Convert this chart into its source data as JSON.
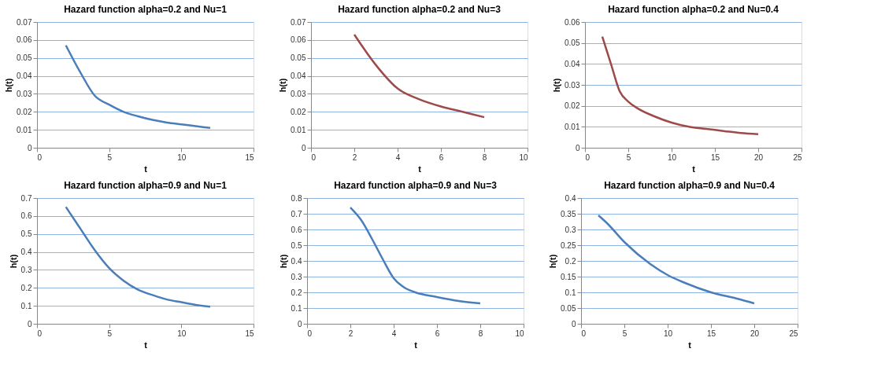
{
  "chart_data": [
    {
      "type": "line",
      "title": "Hazard function alpha=0.2 and  Nu=1",
      "xlabel": "t",
      "ylabel": "h(t)",
      "x": [
        2,
        3,
        4,
        5,
        6,
        7,
        8,
        9,
        10,
        11,
        12
      ],
      "series": [
        {
          "color": "#4a7ebb",
          "values": [
            0.057,
            0.042,
            0.029,
            0.024,
            0.02,
            0.0175,
            0.0155,
            0.014,
            0.013,
            0.012,
            0.011
          ]
        }
      ],
      "xlim": [
        0,
        15
      ],
      "xticks": [
        0,
        5,
        10,
        15
      ],
      "ylim": [
        0,
        0.07
      ],
      "yticks": [
        0,
        0.01,
        0.02,
        0.03,
        0.04,
        0.05,
        0.06,
        0.07
      ],
      "grid": "y"
    },
    {
      "type": "line",
      "title": "Hazard function alpha=0.2 and  Nu=3",
      "xlabel": "t",
      "ylabel": "h(t)",
      "x": [
        2,
        3,
        4,
        5,
        6,
        7,
        8
      ],
      "series": [
        {
          "color": "#9e4a4a",
          "values": [
            0.063,
            0.046,
            0.033,
            0.027,
            0.023,
            0.02,
            0.017
          ]
        }
      ],
      "xlim": [
        0,
        10
      ],
      "xticks": [
        0,
        2,
        4,
        6,
        8,
        10
      ],
      "ylim": [
        0,
        0.07
      ],
      "yticks": [
        0,
        0.01,
        0.02,
        0.03,
        0.04,
        0.05,
        0.06,
        0.07
      ],
      "grid": "y"
    },
    {
      "type": "line",
      "title": "Hazard function alpha=0.2 and  Nu=0.4",
      "xlabel": "t",
      "ylabel": "h(t)",
      "x": [
        2,
        3,
        4,
        5,
        6,
        8,
        10,
        12,
        14,
        16,
        18,
        20
      ],
      "series": [
        {
          "color": "#9e4a4a",
          "values": [
            0.053,
            0.04,
            0.027,
            0.022,
            0.019,
            0.015,
            0.012,
            0.01,
            0.009,
            0.008,
            0.007,
            0.0065
          ]
        }
      ],
      "xlim": [
        0,
        25
      ],
      "xticks": [
        0,
        5,
        10,
        15,
        20,
        25
      ],
      "ylim": [
        0,
        0.06
      ],
      "yticks": [
        0,
        0.01,
        0.02,
        0.03,
        0.04,
        0.05,
        0.06
      ],
      "grid": "y"
    },
    {
      "type": "line",
      "title": "Hazard function alpha=0.9 and  Nu=1",
      "xlabel": "t",
      "ylabel": "h(t)",
      "x": [
        2,
        3,
        4,
        5,
        6,
        7,
        8,
        9,
        10,
        11,
        12
      ],
      "series": [
        {
          "color": "#4a7ebb",
          "values": [
            0.65,
            0.53,
            0.41,
            0.31,
            0.24,
            0.19,
            0.16,
            0.135,
            0.12,
            0.105,
            0.095
          ]
        }
      ],
      "xlim": [
        0,
        15
      ],
      "xticks": [
        0,
        5,
        10,
        15
      ],
      "ylim": [
        0,
        0.7
      ],
      "yticks": [
        0,
        0.1,
        0.2,
        0.3,
        0.4,
        0.5,
        0.6,
        0.7
      ],
      "grid": "y"
    },
    {
      "type": "line",
      "title": "Hazard function alpha=0.9 and  Nu=3",
      "xlabel": "t",
      "ylabel": "h(t)",
      "x": [
        2,
        2.5,
        3,
        3.5,
        4,
        4.5,
        5,
        6,
        7,
        8
      ],
      "series": [
        {
          "color": "#4a7ebb",
          "values": [
            0.74,
            0.66,
            0.54,
            0.41,
            0.29,
            0.23,
            0.2,
            0.17,
            0.145,
            0.13
          ]
        }
      ],
      "xlim": [
        0,
        10
      ],
      "xticks": [
        0,
        2,
        4,
        6,
        8,
        10
      ],
      "ylim": [
        0,
        0.8
      ],
      "yticks": [
        0,
        0.1,
        0.2,
        0.3,
        0.4,
        0.5,
        0.6,
        0.7,
        0.8
      ],
      "grid": "y"
    },
    {
      "type": "line",
      "title": "Hazard function alpha=0.9 and  Nu=0.4",
      "xlabel": "t",
      "ylabel": "h(t)",
      "x": [
        2,
        3,
        5,
        8,
        10,
        12,
        15,
        18,
        20
      ],
      "series": [
        {
          "color": "#4a7ebb",
          "values": [
            0.345,
            0.32,
            0.26,
            0.19,
            0.155,
            0.13,
            0.1,
            0.08,
            0.065
          ]
        }
      ],
      "xlim": [
        0,
        25
      ],
      "xticks": [
        0,
        5,
        10,
        15,
        20,
        25
      ],
      "ylim": [
        0,
        0.4
      ],
      "yticks": [
        0,
        0.05,
        0.1,
        0.15,
        0.2,
        0.25,
        0.3,
        0.35,
        0.4
      ],
      "grid": "y"
    }
  ]
}
